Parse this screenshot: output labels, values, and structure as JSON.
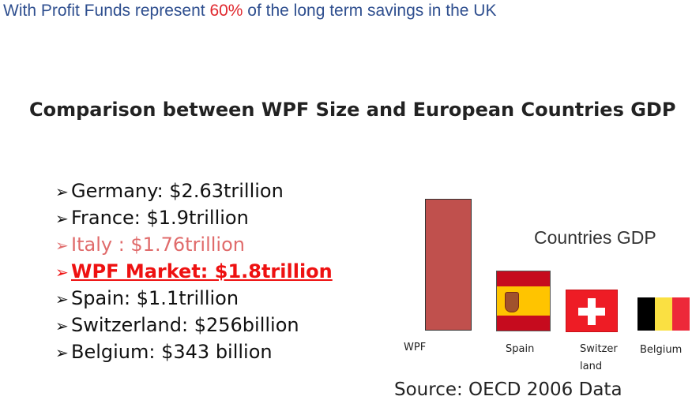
{
  "headline": {
    "before": "With Profit Funds represent ",
    "highlight": "60%",
    "after": " of the long term savings in the UK",
    "highlight_color": "#e0282e",
    "text_color": "#2f4f8f"
  },
  "section_title": "Comparison between WPF Size and European Countries GDP",
  "list": {
    "bullet": "➢",
    "items": [
      {
        "text": "Germany: $2.63trillion",
        "style": "normal"
      },
      {
        "text": "France: $1.9trillion",
        "style": "normal"
      },
      {
        "text": "Italy :  $1.76trillion",
        "style": "muted"
      },
      {
        "text": "WPF Market: $1.8trillion",
        "style": "highlight"
      },
      {
        "text": "Spain: $1.1trillion",
        "style": "normal"
      },
      {
        "text": "Switzerland: $256billion",
        "style": "normal"
      },
      {
        "text": "Belgium: $343 billion",
        "style": "normal"
      }
    ]
  },
  "chart": {
    "label": "Countries GDP",
    "bar_color": "#c0504d",
    "categories": [
      "WPF",
      "Spain",
      "Switzer land",
      "Belgium"
    ],
    "icons": [
      "spain-flag-icon",
      "switzerland-flag-icon",
      "belgium-flag-icon"
    ],
    "swiss_label_line1": "Switzer",
    "swiss_label_line2": "land"
  },
  "source": "Source: OECD 2006 Data"
}
